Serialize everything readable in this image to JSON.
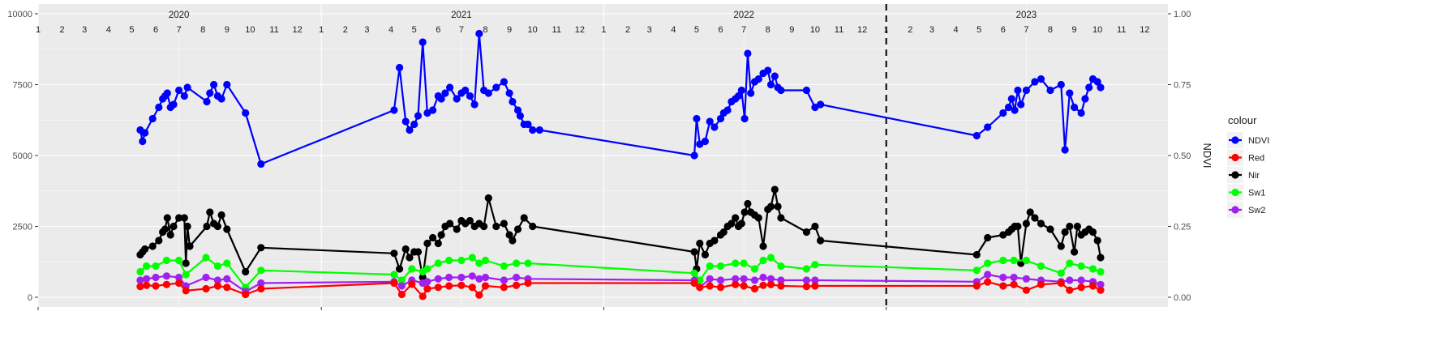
{
  "chart_data": {
    "type": "line",
    "xlim": [
      "2020-01-01",
      "2023-12-31"
    ],
    "ylim_left": [
      0,
      10000
    ],
    "left_ticks": [
      0,
      2500,
      5000,
      7500,
      10000
    ],
    "ylim_right": [
      0,
      1
    ],
    "right_ticks": [
      "0.00",
      "0.25",
      "0.50",
      "0.75",
      "1.00"
    ],
    "ylabel_right": "NDVI",
    "grid": true,
    "years": [
      {
        "label": "2020",
        "date": "2020-07-01"
      },
      {
        "label": "2021",
        "date": "2021-07-01"
      },
      {
        "label": "2022",
        "date": "2022-07-01"
      },
      {
        "label": "2023",
        "date": "2023-07-01"
      }
    ],
    "month_labels": [
      "1",
      "2",
      "3",
      "4",
      "5",
      "6",
      "7",
      "8",
      "9",
      "10",
      "11",
      "12"
    ],
    "vline": {
      "date": "2023-01-01",
      "style": "dashed"
    },
    "legend": {
      "title": "colour",
      "position": "right",
      "entries": [
        "NDVI",
        "Red",
        "Nir",
        "Sw1",
        "Sw2"
      ]
    },
    "series": [
      {
        "name": "NDVI",
        "axis": "right",
        "color": "#0000FF",
        "x": [
          "2020-05-12",
          "2020-05-15",
          "2020-05-18",
          "2020-05-28",
          "2020-06-05",
          "2020-06-10",
          "2020-06-13",
          "2020-06-16",
          "2020-06-20",
          "2020-06-24",
          "2020-07-01",
          "2020-07-08",
          "2020-07-12",
          "2020-08-06",
          "2020-08-10",
          "2020-08-15",
          "2020-08-20",
          "2020-08-25",
          "2020-09-01",
          "2020-09-25",
          "2020-10-15",
          "2021-04-05",
          "2021-04-12",
          "2021-04-20",
          "2021-04-25",
          "2021-05-01",
          "2021-05-06",
          "2021-05-12",
          "2021-05-18",
          "2021-05-25",
          "2021-06-01",
          "2021-06-05",
          "2021-06-10",
          "2021-06-16",
          "2021-06-25",
          "2021-07-01",
          "2021-07-06",
          "2021-07-12",
          "2021-07-18",
          "2021-07-24",
          "2021-07-30",
          "2021-08-05",
          "2021-08-15",
          "2021-08-25",
          "2021-09-01",
          "2021-09-05",
          "2021-09-12",
          "2021-09-15",
          "2021-09-20",
          "2021-09-25",
          "2021-10-01",
          "2021-10-10",
          "2022-04-28",
          "2022-05-01",
          "2022-05-05",
          "2022-05-12",
          "2022-05-18",
          "2022-05-24",
          "2022-06-01",
          "2022-06-05",
          "2022-06-10",
          "2022-06-15",
          "2022-06-20",
          "2022-06-24",
          "2022-06-28",
          "2022-07-02",
          "2022-07-06",
          "2022-07-10",
          "2022-07-15",
          "2022-07-20",
          "2022-07-26",
          "2022-08-01",
          "2022-08-05",
          "2022-08-10",
          "2022-08-14",
          "2022-08-18",
          "2022-09-20",
          "2022-10-01",
          "2022-10-08",
          "2023-04-28",
          "2023-05-12",
          "2023-06-01",
          "2023-06-08",
          "2023-06-12",
          "2023-06-16",
          "2023-06-20",
          "2023-06-24",
          "2023-07-01",
          "2023-07-12",
          "2023-07-20",
          "2023-08-01",
          "2023-08-15",
          "2023-08-20",
          "2023-08-26",
          "2023-09-01",
          "2023-09-10",
          "2023-09-15",
          "2023-09-20",
          "2023-09-25",
          "2023-10-01",
          "2023-10-05"
        ],
        "y": [
          0.59,
          0.55,
          0.58,
          0.63,
          0.67,
          0.7,
          0.71,
          0.72,
          0.67,
          0.68,
          0.73,
          0.71,
          0.74,
          0.69,
          0.72,
          0.75,
          0.71,
          0.7,
          0.75,
          0.65,
          0.47,
          0.66,
          0.81,
          0.62,
          0.59,
          0.61,
          0.64,
          0.9,
          0.65,
          0.66,
          0.71,
          0.7,
          0.72,
          0.74,
          0.7,
          0.72,
          0.73,
          0.71,
          0.68,
          0.93,
          0.73,
          0.72,
          0.74,
          0.76,
          0.72,
          0.69,
          0.66,
          0.64,
          0.61,
          0.61,
          0.59,
          0.59,
          0.5,
          0.63,
          0.54,
          0.55,
          0.62,
          0.6,
          0.63,
          0.65,
          0.66,
          0.69,
          0.7,
          0.71,
          0.73,
          0.63,
          0.86,
          0.72,
          0.76,
          0.77,
          0.79,
          0.8,
          0.75,
          0.78,
          0.74,
          0.73,
          0.73,
          0.67,
          0.68,
          0.57,
          0.6,
          0.65,
          0.67,
          0.7,
          0.66,
          0.73,
          0.68,
          0.73,
          0.76,
          0.77,
          0.73,
          0.75,
          0.52,
          0.72,
          0.67,
          0.65,
          0.7,
          0.74,
          0.77,
          0.76,
          0.74
        ]
      },
      {
        "name": "Red",
        "axis": "left",
        "color": "#FF0000",
        "x": [
          "2020-05-12",
          "2020-05-20",
          "2020-06-01",
          "2020-06-15",
          "2020-07-01",
          "2020-07-10",
          "2020-08-05",
          "2020-08-20",
          "2020-09-01",
          "2020-09-25",
          "2020-10-15",
          "2021-04-05",
          "2021-04-15",
          "2021-04-28",
          "2021-05-12",
          "2021-05-18",
          "2021-06-01",
          "2021-06-15",
          "2021-07-01",
          "2021-07-15",
          "2021-07-24",
          "2021-08-01",
          "2021-08-25",
          "2021-09-10",
          "2021-09-25",
          "2022-04-28",
          "2022-05-05",
          "2022-05-18",
          "2022-06-01",
          "2022-06-20",
          "2022-07-01",
          "2022-07-15",
          "2022-07-26",
          "2022-08-05",
          "2022-08-18",
          "2022-09-20",
          "2022-10-01",
          "2023-04-28",
          "2023-05-12",
          "2023-06-01",
          "2023-06-15",
          "2023-07-01",
          "2023-07-20",
          "2023-08-15",
          "2023-08-26",
          "2023-09-10",
          "2023-09-25",
          "2023-10-05"
        ],
        "y": [
          380,
          420,
          400,
          450,
          500,
          230,
          300,
          400,
          350,
          100,
          300,
          500,
          100,
          460,
          30,
          300,
          350,
          400,
          420,
          350,
          80,
          400,
          350,
          420,
          500,
          500,
          350,
          400,
          350,
          450,
          400,
          300,
          420,
          450,
          400,
          380,
          400,
          400,
          540,
          400,
          450,
          250,
          450,
          500,
          250,
          350,
          400,
          250
        ]
      },
      {
        "name": "Nir",
        "axis": "left",
        "color": "#000000",
        "x": [
          "2020-05-12",
          "2020-05-15",
          "2020-05-18",
          "2020-05-28",
          "2020-06-05",
          "2020-06-10",
          "2020-06-13",
          "2020-06-16",
          "2020-06-20",
          "2020-06-24",
          "2020-07-01",
          "2020-07-08",
          "2020-07-10",
          "2020-07-12",
          "2020-07-15",
          "2020-08-06",
          "2020-08-10",
          "2020-08-15",
          "2020-08-20",
          "2020-08-25",
          "2020-09-01",
          "2020-09-25",
          "2020-10-15",
          "2021-04-05",
          "2021-04-12",
          "2021-04-20",
          "2021-04-25",
          "2021-05-01",
          "2021-05-06",
          "2021-05-12",
          "2021-05-18",
          "2021-05-25",
          "2021-06-01",
          "2021-06-05",
          "2021-06-10",
          "2021-06-16",
          "2021-06-25",
          "2021-07-01",
          "2021-07-06",
          "2021-07-12",
          "2021-07-18",
          "2021-07-24",
          "2021-07-30",
          "2021-08-05",
          "2021-08-15",
          "2021-08-25",
          "2021-09-01",
          "2021-09-05",
          "2021-09-12",
          "2021-09-20",
          "2021-10-01",
          "2022-04-28",
          "2022-05-01",
          "2022-05-05",
          "2022-05-12",
          "2022-05-18",
          "2022-05-24",
          "2022-06-01",
          "2022-06-05",
          "2022-06-10",
          "2022-06-15",
          "2022-06-20",
          "2022-06-24",
          "2022-06-28",
          "2022-07-02",
          "2022-07-06",
          "2022-07-10",
          "2022-07-15",
          "2022-07-20",
          "2022-07-26",
          "2022-08-01",
          "2022-08-05",
          "2022-08-10",
          "2022-08-14",
          "2022-08-18",
          "2022-09-20",
          "2022-10-01",
          "2022-10-08",
          "2023-04-28",
          "2023-05-12",
          "2023-06-01",
          "2023-06-08",
          "2023-06-12",
          "2023-06-16",
          "2023-06-20",
          "2023-06-24",
          "2023-07-01",
          "2023-07-06",
          "2023-07-12",
          "2023-07-20",
          "2023-08-01",
          "2023-08-15",
          "2023-08-20",
          "2023-08-26",
          "2023-09-01",
          "2023-09-05",
          "2023-09-10",
          "2023-09-15",
          "2023-09-20",
          "2023-09-25",
          "2023-10-01",
          "2023-10-05"
        ],
        "y": [
          1500,
          1600,
          1700,
          1800,
          2000,
          2300,
          2400,
          2800,
          2200,
          2500,
          2800,
          2800,
          1200,
          2500,
          1800,
          2500,
          3000,
          2600,
          2500,
          2900,
          2400,
          900,
          1750,
          1550,
          1000,
          1700,
          1400,
          1600,
          1600,
          700,
          1900,
          2100,
          1900,
          2200,
          2500,
          2600,
          2400,
          2700,
          2600,
          2700,
          2500,
          2600,
          2500,
          3500,
          2500,
          2600,
          2200,
          2000,
          2400,
          2800,
          2500,
          1600,
          1000,
          1900,
          1500,
          1900,
          2000,
          2200,
          2300,
          2500,
          2600,
          2800,
          2500,
          2600,
          3000,
          3300,
          3000,
          2900,
          2800,
          1800,
          3100,
          3200,
          3800,
          3200,
          2800,
          2300,
          2500,
          2000,
          1500,
          2100,
          2200,
          2300,
          2400,
          2500,
          2500,
          1200,
          2600,
          3000,
          2800,
          2600,
          2400,
          1800,
          2300,
          2500,
          1600,
          2500,
          2200,
          2300,
          2400,
          2300,
          2000,
          1400
        ]
      },
      {
        "name": "Sw1",
        "axis": "left",
        "color": "#00FF00",
        "x": [
          "2020-05-12",
          "2020-05-20",
          "2020-06-01",
          "2020-06-15",
          "2020-07-01",
          "2020-07-10",
          "2020-08-05",
          "2020-08-20",
          "2020-09-01",
          "2020-09-25",
          "2020-10-15",
          "2021-04-05",
          "2021-04-15",
          "2021-04-28",
          "2021-05-12",
          "2021-05-18",
          "2021-06-01",
          "2021-06-15",
          "2021-07-01",
          "2021-07-15",
          "2021-07-24",
          "2021-08-01",
          "2021-08-25",
          "2021-09-10",
          "2021-09-25",
          "2022-04-28",
          "2022-05-05",
          "2022-05-18",
          "2022-06-01",
          "2022-06-20",
          "2022-07-01",
          "2022-07-15",
          "2022-07-26",
          "2022-08-05",
          "2022-08-18",
          "2022-09-20",
          "2022-10-01",
          "2023-04-28",
          "2023-05-12",
          "2023-06-01",
          "2023-06-15",
          "2023-07-01",
          "2023-07-20",
          "2023-08-15",
          "2023-08-26",
          "2023-09-10",
          "2023-09-25",
          "2023-10-05"
        ],
        "y": [
          900,
          1100,
          1100,
          1300,
          1300,
          800,
          1400,
          1100,
          1200,
          350,
          950,
          800,
          600,
          1000,
          900,
          1000,
          1200,
          1300,
          1300,
          1400,
          1200,
          1300,
          1100,
          1200,
          1200,
          850,
          600,
          1100,
          1100,
          1200,
          1200,
          1000,
          1300,
          1400,
          1100,
          1000,
          1150,
          950,
          1200,
          1300,
          1300,
          1300,
          1100,
          850,
          1200,
          1100,
          1000,
          900
        ]
      },
      {
        "name": "Sw2",
        "axis": "left",
        "color": "#A020F0",
        "x": [
          "2020-05-12",
          "2020-05-20",
          "2020-06-01",
          "2020-06-15",
          "2020-07-01",
          "2020-07-10",
          "2020-08-05",
          "2020-08-20",
          "2020-09-01",
          "2020-09-25",
          "2020-10-15",
          "2021-04-05",
          "2021-04-15",
          "2021-04-28",
          "2021-05-12",
          "2021-05-18",
          "2021-06-01",
          "2021-06-15",
          "2021-07-01",
          "2021-07-15",
          "2021-07-24",
          "2021-08-01",
          "2021-08-25",
          "2021-09-10",
          "2021-09-25",
          "2022-04-28",
          "2022-05-05",
          "2022-05-18",
          "2022-06-01",
          "2022-06-20",
          "2022-07-01",
          "2022-07-15",
          "2022-07-26",
          "2022-08-05",
          "2022-08-18",
          "2022-09-20",
          "2022-10-01",
          "2023-04-28",
          "2023-05-12",
          "2023-06-01",
          "2023-06-15",
          "2023-07-01",
          "2023-07-20",
          "2023-08-15",
          "2023-08-26",
          "2023-09-10",
          "2023-09-25",
          "2023-10-05"
        ],
        "y": [
          600,
          650,
          700,
          750,
          700,
          400,
          700,
          600,
          650,
          200,
          500,
          550,
          400,
          600,
          500,
          550,
          650,
          700,
          700,
          750,
          650,
          700,
          600,
          700,
          650,
          600,
          350,
          650,
          600,
          650,
          650,
          600,
          700,
          650,
          600,
          600,
          600,
          550,
          800,
          700,
          700,
          650,
          600,
          550,
          600,
          600,
          550,
          450
        ]
      }
    ]
  }
}
